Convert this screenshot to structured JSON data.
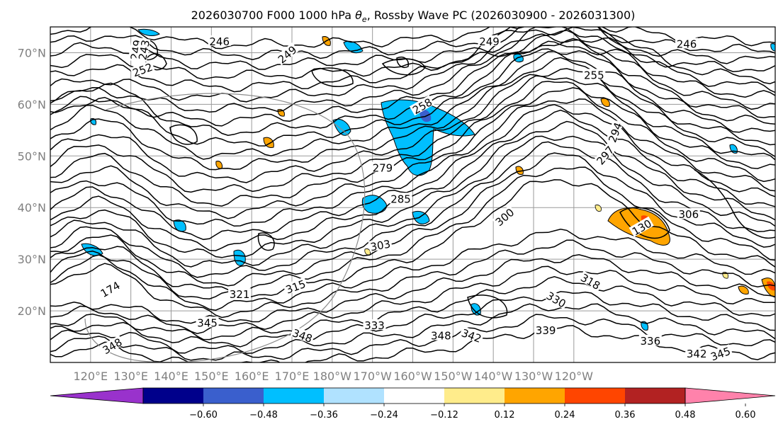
{
  "title_prefix": "2026030700 F000 1000 hPa ",
  "title_symbol": "θ",
  "title_sub": "e",
  "title_suffix": ", Rossby Wave PC (2026030900 - 2026031300)",
  "lat_labels": [
    "70°N",
    "60°N",
    "50°N",
    "40°N",
    "30°N",
    "20°N"
  ],
  "lon_labels": [
    "120°E",
    "130°E",
    "140°E",
    "150°E",
    "160°E",
    "170°E",
    "180°W",
    "170°W",
    "160°W",
    "150°W",
    "140°W",
    "130°W",
    "120°W"
  ],
  "colorbar": {
    "colors": [
      "#9932cc",
      "#00008b",
      "#3a5fcd",
      "#00bfff",
      "#b0e2ff",
      "#ffffff",
      "#ffec8b",
      "#ffa500",
      "#ff4500",
      "#b22222",
      "#ff82ab"
    ],
    "ticks": [
      "−0.60",
      "−0.48",
      "−0.36",
      "−0.24",
      "−0.12",
      "0.12",
      "0.24",
      "0.36",
      "0.48",
      "0.60"
    ]
  },
  "contour_labels": [
    {
      "text": "249",
      "lon": 131.5,
      "lat": 70.5,
      "rot": -80
    },
    {
      "text": "243",
      "lon": 133.5,
      "lat": 70.5,
      "rot": -80
    },
    {
      "text": "252",
      "lon": 133.0,
      "lat": 66.5,
      "rot": -20
    },
    {
      "text": "246",
      "lon": 152.0,
      "lat": 72.0,
      "rot": 0
    },
    {
      "text": "249",
      "lon": 169.0,
      "lat": 69.5,
      "rot": -40
    },
    {
      "text": "249",
      "lon": 219.0,
      "lat": 72.0,
      "rot": 0
    },
    {
      "text": "255",
      "lon": 245.0,
      "lat": 65.5,
      "rot": 0
    },
    {
      "text": "246",
      "lon": 268.0,
      "lat": 71.5,
      "rot": 0
    },
    {
      "text": "258",
      "lon": 202.5,
      "lat": 59.5,
      "rot": -30
    },
    {
      "text": "279",
      "lon": 192.5,
      "lat": 47.5,
      "rot": 0
    },
    {
      "text": "285",
      "lon": 197.0,
      "lat": 41.5,
      "rot": 0
    },
    {
      "text": "300",
      "lon": 223.0,
      "lat": 38.0,
      "rot": -40
    },
    {
      "text": "303",
      "lon": 192.0,
      "lat": 32.5,
      "rot": -10
    },
    {
      "text": "294",
      "lon": 250.5,
      "lat": 54.5,
      "rot": -70
    },
    {
      "text": "297",
      "lon": 248.0,
      "lat": 50.0,
      "rot": -50
    },
    {
      "text": "306",
      "lon": 268.5,
      "lat": 38.5,
      "rot": 0
    },
    {
      "text": "318",
      "lon": 244.0,
      "lat": 25.5,
      "rot": 30
    },
    {
      "text": "330",
      "lon": 235.5,
      "lat": 22.0,
      "rot": 30
    },
    {
      "text": "315",
      "lon": 171.0,
      "lat": 24.5,
      "rot": -20
    },
    {
      "text": "321",
      "lon": 157.0,
      "lat": 23.0,
      "rot": 0
    },
    {
      "text": "345",
      "lon": 149.0,
      "lat": 17.5,
      "rot": 0
    },
    {
      "text": "348",
      "lon": 172.5,
      "lat": 15.0,
      "rot": 20
    },
    {
      "text": "333",
      "lon": 190.5,
      "lat": 17.0,
      "rot": 0
    },
    {
      "text": "348",
      "lon": 207.0,
      "lat": 15.0,
      "rot": 0
    },
    {
      "text": "342",
      "lon": 214.5,
      "lat": 15.0,
      "rot": 20
    },
    {
      "text": "339",
      "lon": 233.0,
      "lat": 16.0,
      "rot": 0
    },
    {
      "text": "336",
      "lon": 259.0,
      "lat": 14.0,
      "rot": 0
    },
    {
      "text": "342",
      "lon": 270.5,
      "lat": 11.5,
      "rot": 0
    },
    {
      "text": "345",
      "lon": 276.5,
      "lat": 11.5,
      "rot": -20
    },
    {
      "text": "348",
      "lon": 125.5,
      "lat": 13.0,
      "rot": -30
    },
    {
      "text": "174",
      "lon": 125.0,
      "lat": 24.0,
      "rot": -30
    },
    {
      "text": "130",
      "lon": 257.0,
      "lat": 36.0,
      "rot": -30
    }
  ]
}
